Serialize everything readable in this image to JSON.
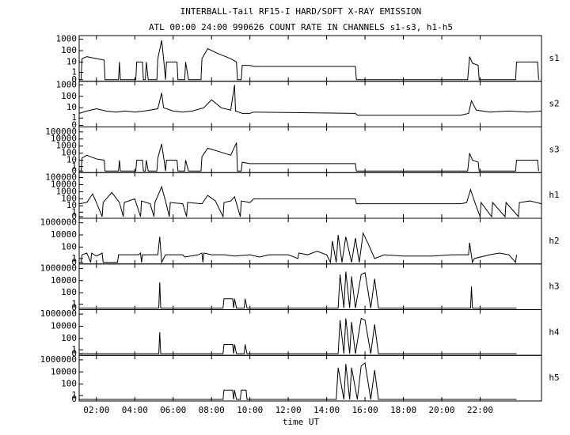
{
  "title": "INTERBALL-Tail RF15-I HARD/SOFT X-RAY EMISSION",
  "subtitle": "ATL 00:00 24:00 990626  COUNT RATE IN CHANNELS s1-s3, h1-h5",
  "xlabel": "time UT",
  "xlim": [
    1.1,
    25.2
  ],
  "xticks": [
    {
      "value": 2,
      "label": "02:00"
    },
    {
      "value": 4,
      "label": "04:00"
    },
    {
      "value": 6,
      "label": "06:00"
    },
    {
      "value": 8,
      "label": "08:00"
    },
    {
      "value": 10,
      "label": "10:00"
    },
    {
      "value": 12,
      "label": "12:00"
    },
    {
      "value": 14,
      "label": "14:00"
    },
    {
      "value": 16,
      "label": "16:00"
    },
    {
      "value": 18,
      "label": "18:00"
    },
    {
      "value": 20,
      "label": "20:00"
    },
    {
      "value": 22,
      "label": "22:00"
    }
  ],
  "chart_data": [
    {
      "type": "line",
      "yscale": "log",
      "ylim": [
        0,
        1500
      ],
      "yticks": [
        0,
        1,
        10,
        100,
        1000
      ],
      "x": [
        1.1,
        1.2,
        1.25,
        1.5,
        2.0,
        2.4,
        2.45,
        3.15,
        3.2,
        3.25,
        4.05,
        4.1,
        4.4,
        4.45,
        4.55,
        4.6,
        4.7,
        5.15,
        5.2,
        5.4,
        5.5,
        5.6,
        5.65,
        6.2,
        6.25,
        6.6,
        6.65,
        6.8,
        7.45,
        7.5,
        7.8,
        8.3,
        9.0,
        9.3,
        9.35,
        9.55,
        9.6,
        10.0,
        10.2,
        15.5,
        15.55,
        21.35,
        21.45,
        21.6,
        21.9,
        21.95,
        23.85,
        23.9,
        25.0,
        25.05
      ],
      "series": [
        {
          "name": "s1",
          "color": "#000000",
          "values": [
            0,
            0,
            20,
            30,
            20,
            15,
            0,
            0,
            10,
            0,
            0,
            10,
            10,
            0,
            0,
            10,
            0,
            0,
            20,
            800,
            20,
            0,
            10,
            10,
            0,
            0,
            10,
            0,
            0,
            20,
            150,
            60,
            20,
            10,
            0,
            0,
            5,
            5,
            4,
            4,
            0,
            0,
            30,
            8,
            5,
            0,
            0,
            10,
            10,
            0
          ]
        }
      ]
    },
    {
      "type": "line",
      "yscale": "log",
      "ylim": [
        0,
        1500
      ],
      "yticks": [
        0,
        1,
        10,
        100,
        1000
      ],
      "x": [
        1.1,
        1.5,
        2.0,
        2.5,
        3.0,
        3.5,
        4.0,
        4.5,
        5.2,
        5.4,
        5.5,
        6.0,
        6.5,
        7.0,
        7.6,
        8.0,
        8.5,
        9.0,
        9.2,
        9.25,
        9.6,
        10.0,
        10.2,
        15.5,
        15.6,
        21.0,
        21.4,
        21.55,
        21.8,
        22.5,
        23.5,
        24.5,
        25.2
      ],
      "series": [
        {
          "name": "s2",
          "color": "#000000",
          "values": [
            3,
            5,
            8,
            5,
            4,
            5,
            4,
            5,
            8,
            200,
            10,
            5,
            4,
            5,
            10,
            50,
            10,
            6,
            1000,
            5,
            3,
            3,
            4,
            3,
            2,
            2,
            3,
            40,
            6,
            4,
            5,
            4,
            5
          ]
        }
      ]
    },
    {
      "type": "line",
      "yscale": "log",
      "ylim": [
        0,
        300000
      ],
      "yticks": [
        0,
        1,
        10,
        100,
        1000,
        10000,
        100000
      ],
      "x": [
        1.1,
        1.2,
        1.25,
        1.5,
        2.0,
        2.4,
        2.45,
        3.15,
        3.2,
        3.25,
        4.05,
        4.1,
        4.4,
        4.45,
        4.55,
        4.6,
        4.7,
        5.15,
        5.2,
        5.4,
        5.5,
        5.6,
        5.65,
        6.2,
        6.25,
        6.6,
        6.65,
        6.8,
        7.45,
        7.5,
        7.8,
        8.3,
        9.0,
        9.3,
        9.35,
        9.55,
        9.6,
        10.0,
        10.2,
        15.5,
        15.55,
        21.35,
        21.45,
        21.6,
        21.9,
        21.95,
        23.85,
        23.9,
        25.0,
        25.05
      ],
      "series": [
        {
          "name": "s3",
          "color": "#000000",
          "values": [
            0,
            0,
            20,
            50,
            15,
            10,
            0,
            0,
            10,
            0,
            0,
            10,
            10,
            0,
            0,
            10,
            0,
            0,
            20,
            2000,
            30,
            0,
            10,
            10,
            0,
            0,
            10,
            0,
            0,
            30,
            500,
            200,
            50,
            3000,
            0,
            0,
            5,
            3,
            3,
            3,
            0,
            0,
            100,
            10,
            5,
            0,
            0,
            10,
            10,
            0
          ]
        }
      ]
    },
    {
      "type": "line",
      "yscale": "log",
      "ylim": [
        0,
        300000
      ],
      "yticks": [
        0,
        1,
        10,
        100,
        1000,
        10000,
        100000
      ],
      "x": [
        1.1,
        1.5,
        1.8,
        2.0,
        2.3,
        2.35,
        2.8,
        3.2,
        3.4,
        3.45,
        4.0,
        4.3,
        4.35,
        4.8,
        5.0,
        5.05,
        5.4,
        5.6,
        5.8,
        5.85,
        6.5,
        6.7,
        6.75,
        7.5,
        7.8,
        8.2,
        8.6,
        8.65,
        9.0,
        9.2,
        9.5,
        9.55,
        10.0,
        10.2,
        15.5,
        15.55,
        21.0,
        21.3,
        21.5,
        21.7,
        22.0,
        22.05,
        22.6,
        22.65,
        23.3,
        23.35,
        24.0,
        24.05,
        24.6,
        25.2
      ],
      "series": [
        {
          "name": "h1",
          "color": "#000000",
          "values": [
            20,
            30,
            500,
            30,
            0,
            30,
            800,
            30,
            0,
            30,
            100,
            0,
            50,
            20,
            0,
            30,
            5000,
            50,
            0,
            30,
            20,
            0,
            30,
            20,
            300,
            50,
            0,
            30,
            50,
            200,
            0,
            50,
            30,
            100,
            100,
            20,
            20,
            30,
            2000,
            50,
            0,
            30,
            0,
            30,
            0,
            30,
            0,
            30,
            50,
            20
          ]
        }
      ]
    },
    {
      "type": "line",
      "yscale": "log",
      "ylim": [
        0,
        3000000
      ],
      "yticks": [
        0,
        1,
        100,
        10000,
        1000000
      ],
      "x": [
        1.2,
        1.25,
        1.5,
        1.7,
        1.75,
        2.0,
        2.3,
        2.35,
        3.1,
        3.15,
        4.2,
        4.3,
        4.35,
        4.4,
        5.2,
        5.3,
        5.4,
        5.5,
        5.6,
        6.5,
        6.6,
        7.3,
        7.5,
        7.55,
        7.6,
        8.0,
        8.7,
        9.2,
        10.0,
        10.5,
        11.0,
        12.0,
        12.5,
        12.55,
        13.0,
        13.5,
        14.0,
        14.2,
        14.3,
        14.5,
        14.6,
        14.8,
        15.0,
        15.3,
        15.5,
        15.7,
        15.9,
        16.2,
        16.5,
        17.0,
        18.0,
        19.5,
        20.5,
        21.4,
        21.45,
        21.6,
        21.7,
        22.5,
        23.0,
        23.5,
        23.85,
        23.9
      ],
      "series": [
        {
          "name": "h2",
          "color": "#000000",
          "values": [
            0,
            5,
            10,
            0,
            10,
            3,
            10,
            0,
            0,
            5,
            5,
            10,
            0,
            5,
            5,
            5000,
            0,
            1,
            5,
            5,
            2,
            5,
            10,
            0,
            10,
            5,
            5,
            3,
            5,
            2,
            5,
            5,
            1,
            10,
            5,
            20,
            5,
            0,
            1000,
            0,
            10000,
            0,
            5000,
            0,
            3000,
            0,
            20000,
            200,
            1,
            5,
            3,
            3,
            5,
            5,
            500,
            0,
            1,
            5,
            10,
            5,
            0,
            5
          ]
        }
      ]
    },
    {
      "type": "line",
      "yscale": "log",
      "ylim": [
        0,
        3000000
      ],
      "yticks": [
        0,
        1,
        100,
        10000,
        1000000
      ],
      "x": [
        1.1,
        5.25,
        5.3,
        5.35,
        8.6,
        8.65,
        9.1,
        9.15,
        9.2,
        9.3,
        9.7,
        9.75,
        9.85,
        14.6,
        14.7,
        14.9,
        15.0,
        15.2,
        15.3,
        15.5,
        15.8,
        16.0,
        16.3,
        16.5,
        16.7,
        21.5,
        21.55,
        21.6,
        23.9
      ],
      "series": [
        {
          "name": "h3",
          "color": "#000000",
          "values": [
            0,
            0,
            5000,
            0,
            0,
            10,
            10,
            0,
            10,
            0,
            0,
            10,
            0,
            0,
            100000,
            0,
            300000,
            0,
            50000,
            0,
            100000,
            200000,
            0,
            20000,
            0,
            0,
            1000,
            0,
            0
          ]
        }
      ]
    },
    {
      "type": "line",
      "yscale": "log",
      "ylim": [
        0,
        3000000
      ],
      "yticks": [
        0,
        1,
        100,
        10000,
        1000000
      ],
      "x": [
        1.1,
        5.25,
        5.3,
        5.35,
        8.6,
        8.65,
        9.1,
        9.15,
        9.2,
        9.3,
        9.7,
        9.75,
        9.85,
        14.6,
        14.7,
        14.9,
        15.0,
        15.2,
        15.3,
        15.5,
        15.8,
        16.0,
        16.3,
        16.5,
        16.7,
        23.9
      ],
      "series": [
        {
          "name": "h4",
          "color": "#000000",
          "values": [
            0,
            0,
            1000,
            0,
            0,
            10,
            10,
            0,
            10,
            0,
            0,
            10,
            0,
            0,
            100000,
            0,
            200000,
            0,
            50000,
            0,
            200000,
            100000,
            0,
            20000,
            0,
            0
          ]
        }
      ]
    },
    {
      "type": "line",
      "yscale": "log",
      "ylim": [
        0,
        3000000
      ],
      "yticks": [
        0,
        1,
        100,
        10000,
        1000000
      ],
      "x": [
        1.1,
        8.6,
        8.65,
        9.1,
        9.15,
        9.2,
        9.3,
        9.5,
        9.55,
        9.8,
        9.85,
        14.5,
        14.6,
        14.9,
        15.0,
        15.2,
        15.3,
        15.6,
        15.8,
        16.0,
        16.3,
        16.5,
        16.7,
        23.9
      ],
      "series": [
        {
          "name": "h5",
          "color": "#000000",
          "values": [
            0,
            0,
            10,
            10,
            0,
            10,
            0,
            0,
            10,
            10,
            0,
            0,
            50000,
            0,
            200000,
            0,
            50000,
            0,
            100000,
            300000,
            0,
            20000,
            0,
            0
          ]
        }
      ]
    }
  ]
}
